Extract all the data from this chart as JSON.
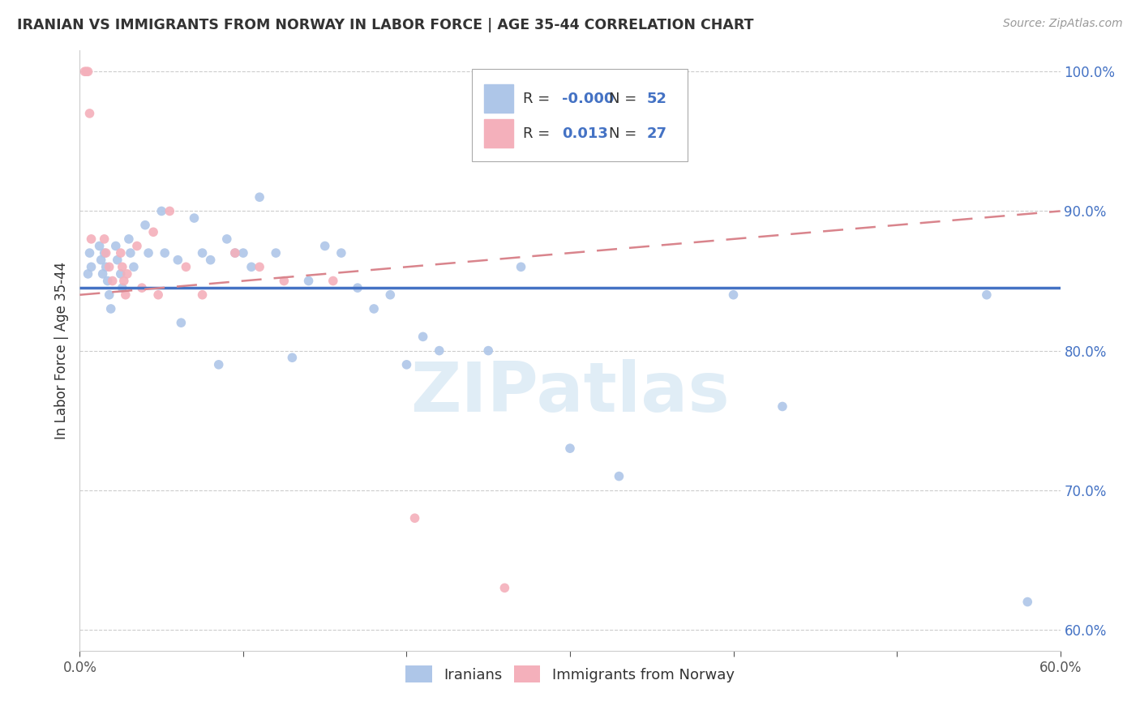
{
  "title": "IRANIAN VS IMMIGRANTS FROM NORWAY IN LABOR FORCE | AGE 35-44 CORRELATION CHART",
  "source": "Source: ZipAtlas.com",
  "xlim": [
    0.0,
    0.6
  ],
  "ylim": [
    0.585,
    1.015
  ],
  "legend1_r": "-0.000",
  "legend1_n": "52",
  "legend2_r": "0.013",
  "legend2_n": "27",
  "blue_color": "#aec6e8",
  "pink_color": "#f4b0bb",
  "line_blue": "#4472c4",
  "line_pink": "#d9848c",
  "marker_size": 70,
  "iranians_x": [
    0.005,
    0.006,
    0.007,
    0.012,
    0.013,
    0.014,
    0.015,
    0.016,
    0.017,
    0.018,
    0.019,
    0.022,
    0.023,
    0.025,
    0.026,
    0.03,
    0.031,
    0.033,
    0.04,
    0.042,
    0.05,
    0.052,
    0.06,
    0.062,
    0.07,
    0.075,
    0.08,
    0.085,
    0.09,
    0.095,
    0.1,
    0.105,
    0.11,
    0.12,
    0.13,
    0.14,
    0.15,
    0.16,
    0.17,
    0.18,
    0.19,
    0.2,
    0.21,
    0.22,
    0.25,
    0.27,
    0.3,
    0.33,
    0.4,
    0.43,
    0.555,
    0.58
  ],
  "iranians_y": [
    0.855,
    0.87,
    0.86,
    0.875,
    0.865,
    0.855,
    0.87,
    0.86,
    0.85,
    0.84,
    0.83,
    0.875,
    0.865,
    0.855,
    0.845,
    0.88,
    0.87,
    0.86,
    0.89,
    0.87,
    0.9,
    0.87,
    0.865,
    0.82,
    0.895,
    0.87,
    0.865,
    0.79,
    0.88,
    0.87,
    0.87,
    0.86,
    0.91,
    0.87,
    0.795,
    0.85,
    0.875,
    0.87,
    0.845,
    0.83,
    0.84,
    0.79,
    0.81,
    0.8,
    0.8,
    0.86,
    0.73,
    0.71,
    0.84,
    0.76,
    0.84,
    0.62
  ],
  "norway_x": [
    0.003,
    0.004,
    0.005,
    0.006,
    0.007,
    0.015,
    0.016,
    0.018,
    0.02,
    0.025,
    0.026,
    0.027,
    0.028,
    0.029,
    0.035,
    0.038,
    0.045,
    0.048,
    0.055,
    0.065,
    0.075,
    0.095,
    0.11,
    0.125,
    0.155,
    0.205,
    0.26
  ],
  "norway_y": [
    1.0,
    1.0,
    1.0,
    0.97,
    0.88,
    0.88,
    0.87,
    0.86,
    0.85,
    0.87,
    0.86,
    0.85,
    0.84,
    0.855,
    0.875,
    0.845,
    0.885,
    0.84,
    0.9,
    0.86,
    0.84,
    0.87,
    0.86,
    0.85,
    0.85,
    0.68,
    0.63
  ],
  "blue_line_y0": 0.845,
  "blue_line_y1": 0.845,
  "pink_line_y0": 0.84,
  "pink_line_y1": 0.9,
  "watermark_text": "ZIPatlas",
  "watermark_color": "#c8dff0",
  "background_color": "#ffffff",
  "grid_color": "#cccccc",
  "title_color": "#333333",
  "ytick_color": "#4472c4",
  "xtick_color": "#555555"
}
